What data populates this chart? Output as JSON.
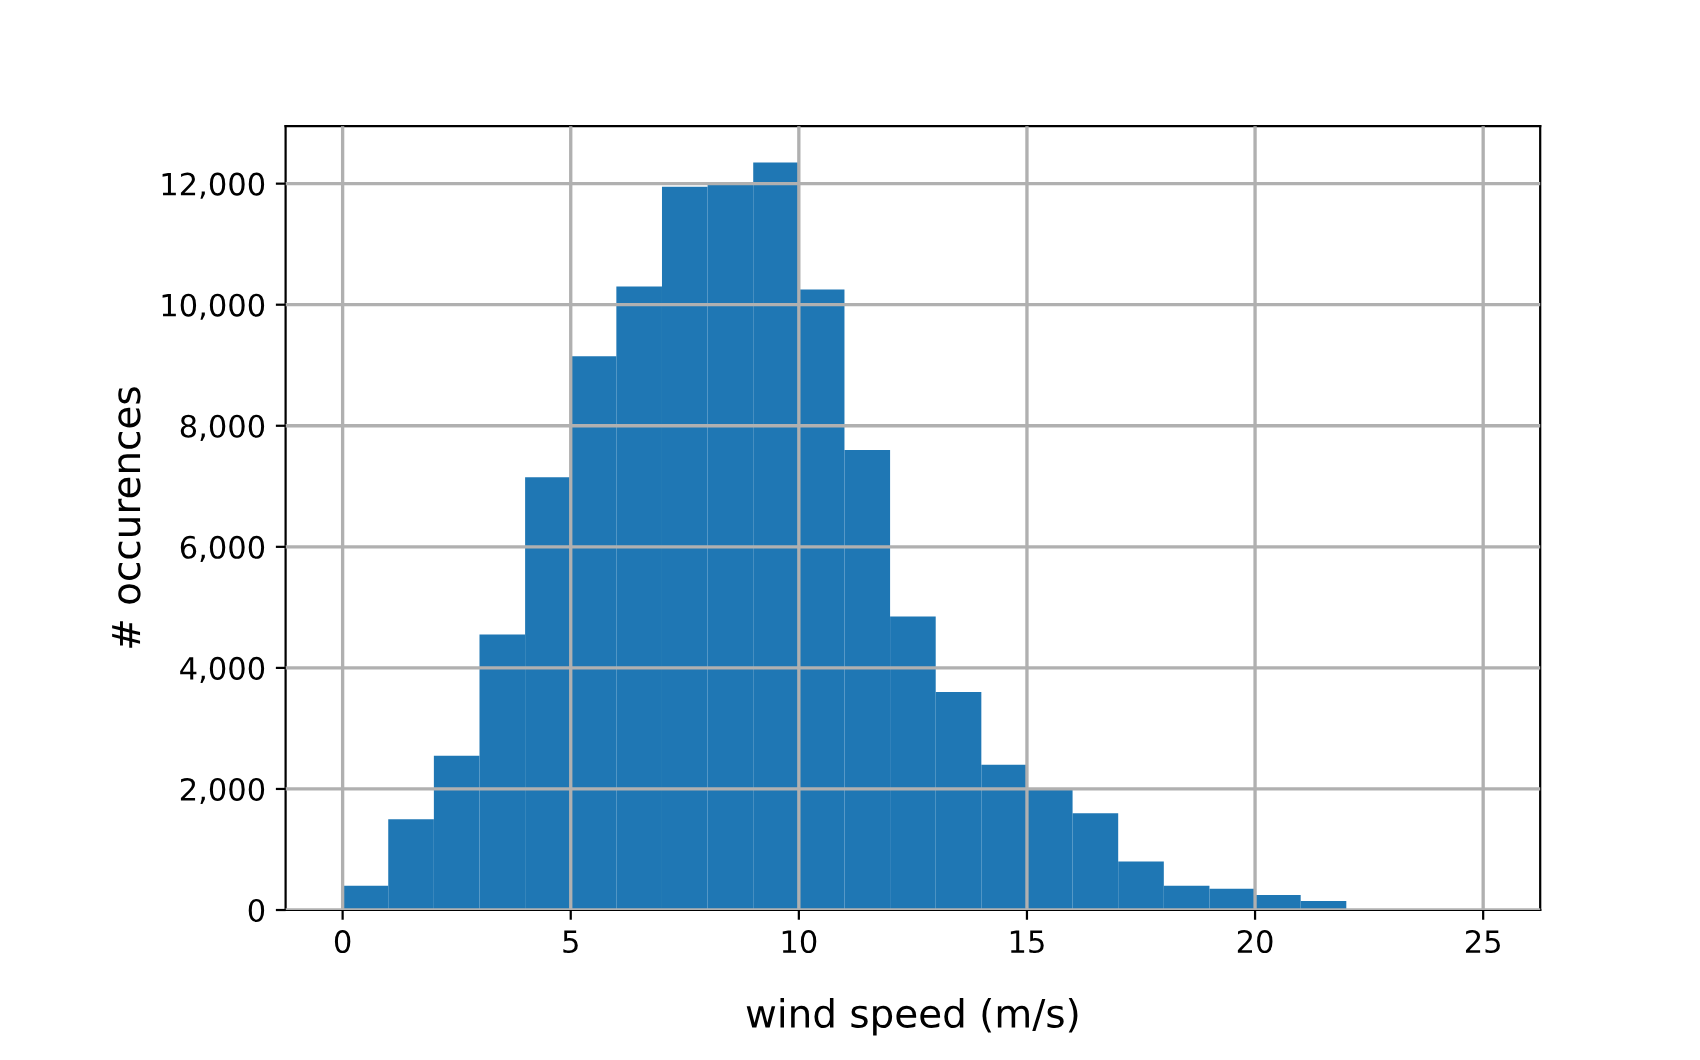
{
  "chart_data": {
    "type": "histogram",
    "xlabel": "wind speed (m/s)",
    "ylabel": "# occurences",
    "color": "#1f77b4",
    "bins": [
      0,
      1,
      2,
      3,
      4,
      5,
      6,
      7,
      8,
      9,
      10,
      11,
      12,
      13,
      14,
      15,
      16,
      17,
      18,
      19,
      20,
      21,
      22,
      23,
      24,
      25
    ],
    "values": [
      400,
      1500,
      2550,
      4550,
      7150,
      9150,
      10300,
      11950,
      12000,
      12350,
      10250,
      7600,
      4850,
      3600,
      2400,
      2000,
      1600,
      800,
      400,
      350,
      250,
      150,
      0,
      0,
      0
    ],
    "xlim": [
      -1.25,
      26.25
    ],
    "ylim": [
      0,
      12950
    ],
    "xticks": [
      0,
      5,
      10,
      15,
      20,
      25
    ],
    "yticks": [
      0,
      {
        "value": 2000,
        "label": "2,000"
      },
      {
        "value": 4000,
        "label": "4,000"
      },
      {
        "value": 6000,
        "label": "6,000"
      },
      {
        "value": 8000,
        "label": "8,000"
      },
      {
        "value": 10000,
        "label": "10,000"
      },
      {
        "value": 12000,
        "label": "12,000"
      }
    ],
    "grid": true
  }
}
